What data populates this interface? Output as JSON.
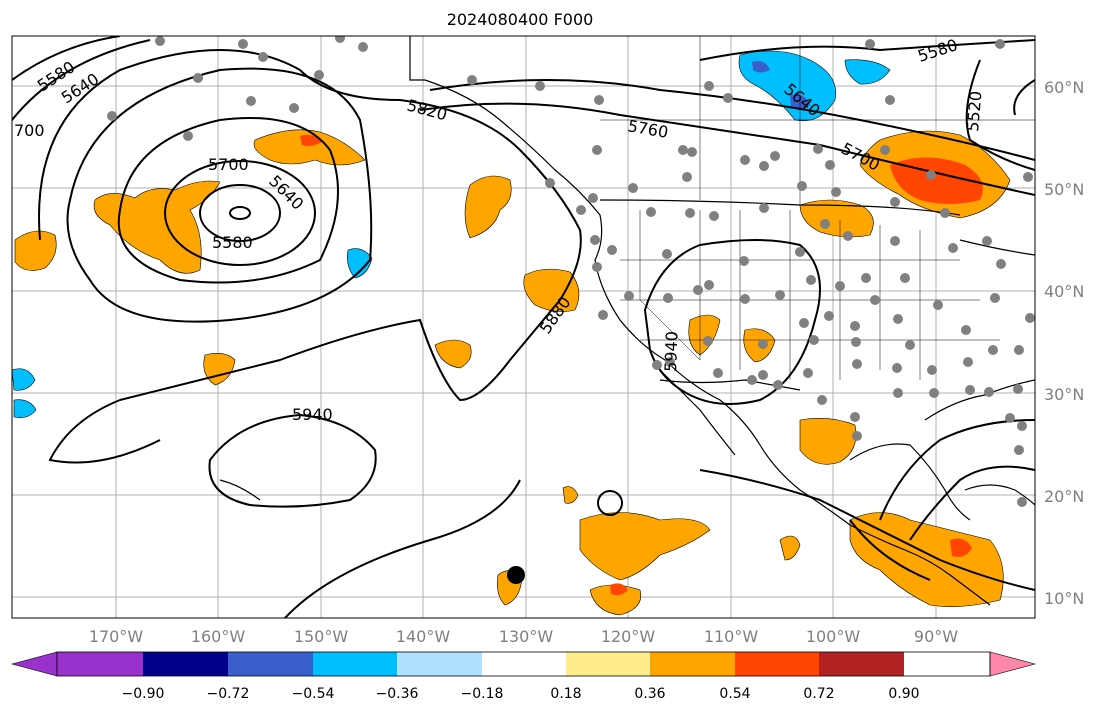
{
  "title": "2024080400 F000",
  "map": {
    "lat_labels": [
      "60°N",
      "50°N",
      "40°N",
      "30°N",
      "20°N",
      "10°N"
    ],
    "lon_labels": [
      "170°W",
      "160°W",
      "150°W",
      "140°W",
      "130°W",
      "120°W",
      "110°W",
      "100°W",
      "90°W"
    ],
    "contour_labels": [
      "5580",
      "5640",
      "700",
      "5820",
      "5760",
      "5640",
      "5580",
      "5520",
      "5700",
      "5700",
      "5640",
      "5580",
      "5880",
      "5940",
      "5940"
    ]
  },
  "colorbar": {
    "colors": [
      "#9932cc",
      "#00008b",
      "#3a5fcd",
      "#00bfff",
      "#b0e2ff",
      "#ffffff",
      "#ffec8b",
      "#ffa500",
      "#ff4500",
      "#b22222",
      "#ff88aa"
    ],
    "tick_labels": [
      "−0.90",
      "−0.72",
      "−0.54",
      "−0.36",
      "−0.18",
      "0.18",
      "0.36",
      "0.54",
      "0.72",
      "0.90"
    ]
  }
}
